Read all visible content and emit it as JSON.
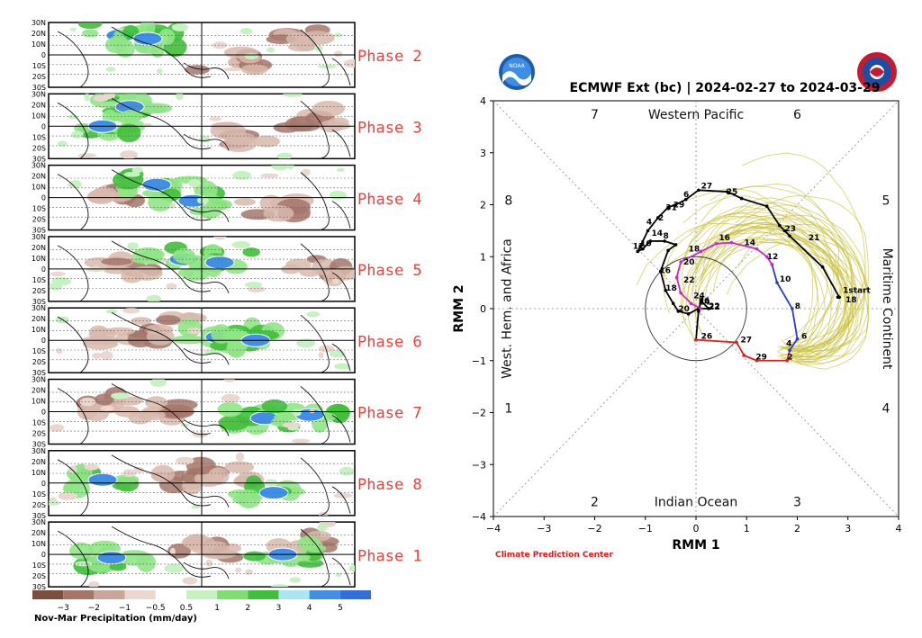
{
  "left_panel": {
    "lat_labels": [
      "30N",
      "20N",
      "10N",
      "0",
      "10S",
      "20S",
      "30S"
    ],
    "phases": [
      {
        "label": "Phase 2",
        "wet": [
          [
            80,
            0.2,
            0.35
          ],
          [
            110,
            0.25,
            0.2
          ]
        ],
        "dry": [
          [
            200,
            0.6,
            0.6
          ],
          [
            270,
            0.25,
            0.5
          ]
        ]
      },
      {
        "label": "Phase 3",
        "wet": [
          [
            90,
            0.2,
            0.45
          ],
          [
            60,
            0.5,
            0.3
          ]
        ],
        "dry": [
          [
            230,
            0.65,
            0.55
          ],
          [
            290,
            0.35,
            0.4
          ]
        ]
      },
      {
        "label": "Phase 4",
        "wet": [
          [
            120,
            0.3,
            0.45
          ],
          [
            160,
            0.55,
            0.3
          ]
        ],
        "dry": [
          [
            250,
            0.65,
            0.5
          ],
          [
            70,
            0.45,
            0.3
          ]
        ]
      },
      {
        "label": "Phase 5",
        "wet": [
          [
            150,
            0.35,
            0.5
          ],
          [
            190,
            0.4,
            0.3
          ]
        ],
        "dry": [
          [
            80,
            0.5,
            0.4
          ],
          [
            300,
            0.5,
            0.35
          ]
        ]
      },
      {
        "label": "Phase 6",
        "wet": [
          [
            190,
            0.45,
            0.5
          ],
          [
            230,
            0.5,
            0.3
          ]
        ],
        "dry": [
          [
            90,
            0.45,
            0.5
          ],
          [
            130,
            0.3,
            0.3
          ]
        ]
      },
      {
        "label": "Phase 7",
        "wet": [
          [
            240,
            0.6,
            0.45
          ],
          [
            290,
            0.55,
            0.3
          ]
        ],
        "dry": [
          [
            120,
            0.5,
            0.5
          ],
          [
            70,
            0.4,
            0.3
          ]
        ]
      },
      {
        "label": "Phase 8",
        "wet": [
          [
            250,
            0.65,
            0.4
          ],
          [
            60,
            0.45,
            0.3
          ]
        ],
        "dry": [
          [
            150,
            0.45,
            0.55
          ],
          [
            190,
            0.35,
            0.3
          ]
        ]
      },
      {
        "label": "Phase 1",
        "wet": [
          [
            70,
            0.55,
            0.5
          ],
          [
            260,
            0.5,
            0.35
          ]
        ],
        "dry": [
          [
            180,
            0.45,
            0.55
          ],
          [
            280,
            0.3,
            0.3
          ]
        ]
      }
    ],
    "colorbar": {
      "ticks": [
        "−3",
        "−2",
        "−1",
        "−0.5",
        "0.5",
        "1",
        "2",
        "3",
        "4",
        "5"
      ],
      "colors": [
        "#7b4f3e",
        "#a6756a",
        "#c9a59a",
        "#ead7cf",
        "#ffffff",
        "#c6f2c2",
        "#7ede72",
        "#3fbf3a",
        "#a8e6f0",
        "#3f8fe8"
      ],
      "title": "Nov-Mar Precipitation (mm/day)"
    }
  },
  "chart_data": {
    "type": "line",
    "title": "ECMWF Ext (bc) | 2024-02-27 to 2024-03-29",
    "xlabel": "RMM 1",
    "ylabel": "RMM 2",
    "xlim": [
      -4,
      4
    ],
    "ylim": [
      -4,
      4
    ],
    "xticks": [
      "−4",
      "−3",
      "−2",
      "−1",
      "0",
      "1",
      "2",
      "3",
      "4"
    ],
    "yticks": [
      "−4",
      "−3",
      "−2",
      "−1",
      "0",
      "1",
      "2",
      "3",
      "4"
    ],
    "regions": {
      "top": "Western Pacific",
      "bottom": "Indian Ocean",
      "left": "West. Hem. and Africa",
      "right": "Maritime Continent"
    },
    "phase_numbers": {
      "p1": "1",
      "p2": "2",
      "p3": "3",
      "p4": "4",
      "p5": "5",
      "p6": "6",
      "p7": "7",
      "p8": "8"
    },
    "credit": "Climate Prediction Center",
    "colors": {
      "observed": "#000000",
      "ensemble": "#c9c03b",
      "week1": "#e31a1c",
      "week2": "#2b3bd6",
      "week3": "#c62ad0",
      "circle": "#333333"
    },
    "observed": {
      "points": [
        [
          2.8,
          0.22
        ],
        [
          2.83,
          0.22
        ],
        [
          2.5,
          0.8
        ],
        [
          1.85,
          1.4
        ],
        [
          1.75,
          1.5
        ],
        [
          1.65,
          1.6
        ],
        [
          1.4,
          1.97
        ],
        [
          0.9,
          2.12
        ],
        [
          0.62,
          2.25
        ],
        [
          0.05,
          2.28
        ],
        [
          -0.2,
          2.1
        ],
        [
          -0.4,
          2.0
        ],
        [
          -0.55,
          1.95
        ],
        [
          -0.75,
          1.75
        ],
        [
          -0.95,
          1.5
        ],
        [
          -1.1,
          1.2
        ],
        [
          -1.15,
          1.1
        ],
        [
          -1.05,
          1.15
        ],
        [
          -0.9,
          1.3
        ],
        [
          -0.62,
          1.3
        ],
        [
          -0.4,
          1.23
        ],
        [
          -0.55,
          1.12
        ],
        [
          -0.7,
          0.72
        ],
        [
          -0.6,
          0.35
        ],
        [
          -0.45,
          0.1
        ],
        [
          -0.35,
          -0.05
        ],
        [
          -0.15,
          -0.1
        ],
        [
          0.05,
          0.0
        ],
        [
          0.25,
          0.0
        ],
        [
          0.1,
          0.15
        ],
        [
          0.05,
          -0.05
        ],
        [
          0.0,
          -0.6
        ]
      ],
      "labels": [
        [
          "1start",
          2.9,
          0.3
        ],
        [
          "18",
          2.95,
          0.12
        ],
        [
          "21",
          2.22,
          1.32
        ],
        [
          "23",
          1.75,
          1.49
        ],
        [
          "25",
          0.6,
          2.2
        ],
        [
          "27",
          0.1,
          2.31
        ],
        [
          "6",
          -0.25,
          2.15
        ],
        [
          "29",
          -0.45,
          1.95
        ],
        [
          "31",
          -0.6,
          1.9
        ],
        [
          "2",
          -0.75,
          1.7
        ],
        [
          "4",
          -0.98,
          1.62
        ],
        [
          "14",
          -0.88,
          1.4
        ],
        [
          "10",
          -1.1,
          1.2
        ],
        [
          "12",
          -1.25,
          1.15
        ],
        [
          "8",
          -0.65,
          1.35
        ],
        [
          "16",
          -0.72,
          0.68
        ],
        [
          "18",
          -0.6,
          0.35
        ],
        [
          "20",
          -0.35,
          -0.05
        ],
        [
          "22",
          0.25,
          -0.02
        ],
        [
          "24",
          0.05,
          0.08
        ]
      ]
    },
    "week1": {
      "points": [
        [
          0.0,
          -0.6
        ],
        [
          0.8,
          -0.65
        ],
        [
          0.95,
          -0.9
        ],
        [
          1.2,
          -1.0
        ],
        [
          1.8,
          -1.0
        ],
        [
          1.85,
          -0.8
        ]
      ],
      "labels": [
        [
          "26",
          0.1,
          -0.58
        ],
        [
          "27",
          0.88,
          -0.65
        ],
        [
          "29",
          1.18,
          -0.98
        ],
        [
          "2",
          1.8,
          -0.98
        ]
      ]
    },
    "week2": {
      "points": [
        [
          1.85,
          -0.8
        ],
        [
          2.0,
          -0.58
        ],
        [
          1.9,
          0.0
        ],
        [
          1.6,
          0.5
        ],
        [
          1.5,
          0.85
        ]
      ],
      "labels": [
        [
          "4",
          1.78,
          -0.72
        ],
        [
          "6",
          2.08,
          -0.58
        ],
        [
          "8",
          1.95,
          0.0
        ],
        [
          "10",
          1.65,
          0.52
        ]
      ]
    },
    "week3": {
      "points": [
        [
          1.5,
          0.85
        ],
        [
          1.4,
          1.0
        ],
        [
          1.2,
          1.15
        ],
        [
          0.7,
          1.27
        ],
        [
          0.4,
          1.25
        ],
        [
          0.1,
          1.1
        ],
        [
          -0.3,
          0.9
        ],
        [
          -0.38,
          0.6
        ],
        [
          -0.3,
          0.3
        ],
        [
          -0.1,
          0.1
        ],
        [
          0.1,
          0.0
        ]
      ],
      "labels": [
        [
          "12",
          1.4,
          0.95
        ],
        [
          "14",
          0.95,
          1.22
        ],
        [
          "16",
          0.45,
          1.32
        ],
        [
          "18",
          -0.15,
          1.1
        ],
        [
          "20",
          -0.25,
          0.85
        ],
        [
          "22",
          -0.25,
          0.5
        ],
        [
          "24",
          -0.05,
          0.2
        ],
        [
          "26",
          0.05,
          0.1
        ],
        [
          "22",
          0.25,
          0.0
        ]
      ]
    },
    "ensemble_members": 40
  }
}
